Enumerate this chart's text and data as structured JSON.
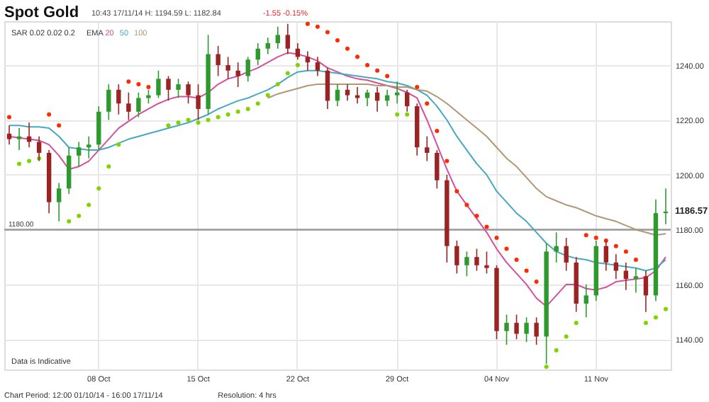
{
  "chart_data": {
    "type": "candlestick",
    "title": "Spot Gold",
    "subtitle": "10:43 17/11/14  H: 1194.59  L: 1182.84",
    "legend_title": "EMA",
    "legend": "top left",
    "grid": true,
    "categories": [
      null,
      null,
      null,
      null,
      null,
      null,
      null,
      null,
      null,
      "08 Oct",
      null,
      null,
      null,
      null,
      null,
      null,
      null,
      null,
      null,
      "15 Oct",
      null,
      null,
      null,
      null,
      null,
      null,
      null,
      null,
      null,
      "22 Oct",
      null,
      null,
      null,
      null,
      null,
      null,
      null,
      null,
      null,
      "29 Oct",
      null,
      null,
      null,
      null,
      null,
      null,
      null,
      null,
      null,
      "04 Nov",
      null,
      null,
      null,
      null,
      null,
      null,
      null,
      null,
      null,
      "11 Nov",
      null,
      null,
      null,
      null,
      null,
      null,
      null
    ],
    "ylim": [
      1129,
      1256
    ],
    "yticks": [
      {
        "value": 1140,
        "label": "1140.00"
      },
      {
        "value": 1160,
        "label": "1160.00"
      },
      {
        "value": 1180,
        "label": "1180.00"
      },
      {
        "value": 1200,
        "label": "1200.00"
      },
      {
        "value": 1220,
        "label": "1220.00"
      },
      {
        "value": 1240,
        "label": "1240.00"
      }
    ],
    "ohlc": [
      [
        1215,
        1218,
        1211,
        1213
      ],
      [
        1213,
        1217,
        1209,
        1214
      ],
      [
        1214,
        1219,
        1210,
        1212
      ],
      [
        1212,
        1214,
        1205,
        1208
      ],
      [
        1208,
        1209,
        1186,
        1190
      ],
      [
        1190,
        1197,
        1183,
        1195
      ],
      [
        1195,
        1210,
        1193,
        1207
      ],
      [
        1207,
        1212,
        1203,
        1210
      ],
      [
        1210,
        1214,
        1206,
        1211
      ],
      [
        1211,
        1225,
        1209,
        1223
      ],
      [
        1223,
        1233,
        1220,
        1231
      ],
      [
        1231,
        1233,
        1222,
        1226
      ],
      [
        1226,
        1230,
        1220,
        1223
      ],
      [
        1223,
        1230,
        1221,
        1228
      ],
      [
        1228,
        1231,
        1226,
        1229
      ],
      [
        1229,
        1238,
        1228,
        1235
      ],
      [
        1235,
        1236,
        1227,
        1231
      ],
      [
        1231,
        1235,
        1228,
        1233
      ],
      [
        1233,
        1234,
        1226,
        1229
      ],
      [
        1229,
        1233,
        1220,
        1224
      ],
      [
        1224,
        1251,
        1222,
        1244
      ],
      [
        1244,
        1247,
        1236,
        1240
      ],
      [
        1240,
        1243,
        1235,
        1238
      ],
      [
        1238,
        1241,
        1232,
        1236
      ],
      [
        1236,
        1243,
        1234,
        1242
      ],
      [
        1242,
        1248,
        1240,
        1246
      ],
      [
        1246,
        1250,
        1244,
        1248
      ],
      [
        1248,
        1254,
        1246,
        1251
      ],
      [
        1251,
        1255,
        1244,
        1246
      ],
      [
        1246,
        1248,
        1242,
        1243
      ],
      [
        1243,
        1245,
        1238,
        1241
      ],
      [
        1241,
        1243,
        1236,
        1238
      ],
      [
        1238,
        1239,
        1224,
        1227
      ],
      [
        1227,
        1233,
        1225,
        1231
      ],
      [
        1231,
        1233,
        1227,
        1229
      ],
      [
        1229,
        1232,
        1226,
        1228
      ],
      [
        1228,
        1231,
        1225,
        1230
      ],
      [
        1230,
        1232,
        1223,
        1227
      ],
      [
        1227,
        1231,
        1225,
        1229
      ],
      [
        1229,
        1234,
        1226,
        1230
      ],
      [
        1230,
        1231,
        1223,
        1225
      ],
      [
        1225,
        1226,
        1207,
        1210
      ],
      [
        1210,
        1214,
        1205,
        1208
      ],
      [
        1208,
        1209,
        1195,
        1198
      ],
      [
        1198,
        1200,
        1168,
        1174
      ],
      [
        1174,
        1176,
        1164,
        1167
      ],
      [
        1167,
        1172,
        1163,
        1170
      ],
      [
        1170,
        1173,
        1165,
        1167
      ],
      [
        1167,
        1172,
        1164,
        1166
      ],
      [
        1166,
        1167,
        1140,
        1143
      ],
      [
        1143,
        1149,
        1138,
        1146
      ],
      [
        1146,
        1149,
        1140,
        1142
      ],
      [
        1142,
        1148,
        1139,
        1146
      ],
      [
        1146,
        1148,
        1138,
        1141
      ],
      [
        1141,
        1175,
        1131,
        1172
      ],
      [
        1172,
        1179,
        1168,
        1174
      ],
      [
        1174,
        1177,
        1165,
        1168
      ],
      [
        1168,
        1170,
        1150,
        1153
      ],
      [
        1153,
        1160,
        1148,
        1156
      ],
      [
        1156,
        1176,
        1154,
        1174
      ],
      [
        1174,
        1176,
        1165,
        1168
      ],
      [
        1168,
        1171,
        1162,
        1165
      ],
      [
        1165,
        1168,
        1158,
        1162
      ],
      [
        1162,
        1166,
        1157,
        1163
      ],
      [
        1163,
        1165,
        1150,
        1156
      ],
      [
        1156,
        1191,
        1154,
        1186
      ],
      [
        1186,
        1195,
        1182,
        1186.57
      ]
    ],
    "colors": [
      "#9b2323",
      "#2e9a2e",
      "#9b2323",
      "#9b2323",
      "#9b2323",
      "#2e9a2e",
      "#2e9a2e",
      "#2e9a2e",
      "#2e9a2e",
      "#2e9a2e",
      "#2e9a2e",
      "#9b2323",
      "#9b2323",
      "#2e9a2e",
      "#2e9a2e",
      "#2e9a2e",
      "#9b2323",
      "#2e9a2e",
      "#9b2323",
      "#9b2323",
      "#2e9a2e",
      "#9b2323",
      "#9b2323",
      "#9b2323",
      "#2e9a2e",
      "#2e9a2e",
      "#2e9a2e",
      "#2e9a2e",
      "#9b2323",
      "#9b2323",
      "#9b2323",
      "#9b2323",
      "#9b2323",
      "#2e9a2e",
      "#9b2323",
      "#9b2323",
      "#2e9a2e",
      "#9b2323",
      "#2e9a2e",
      "#2e9a2e",
      "#9b2323",
      "#9b2323",
      "#9b2323",
      "#9b2323",
      "#9b2323",
      "#9b2323",
      "#2e9a2e",
      "#9b2323",
      "#9b2323",
      "#9b2323",
      "#2e9a2e",
      "#9b2323",
      "#2e9a2e",
      "#9b2323",
      "#2e9a2e",
      "#2e9a2e",
      "#9b2323",
      "#9b2323",
      "#2e9a2e",
      "#2e9a2e",
      "#9b2323",
      "#9b2323",
      "#9b2323",
      "#2e9a2e",
      "#9b2323",
      "#2e9a2e",
      "#2e9a2e"
    ],
    "series": [
      {
        "type": "line",
        "name": "20",
        "color": "#d64f9f",
        "values": [
          1214,
          1213.5,
          1213,
          1212.5,
          1211,
          1207,
          1202,
          1203,
          1205,
          1209,
          1213,
          1217,
          1219.5,
          1222,
          1224,
          1226,
          1227.5,
          1228.5,
          1228.5,
          1228,
          1230,
          1233,
          1235,
          1236,
          1237.5,
          1239,
          1241,
          1243,
          1244.5,
          1244,
          1243,
          1241.5,
          1239,
          1237.5,
          1236,
          1235,
          1234.5,
          1233.5,
          1232.5,
          1231.5,
          1230,
          1228,
          1220,
          1211,
          1202,
          1194,
          1189,
          1184,
          1179,
          1173,
          1168,
          1164,
          1160,
          1155,
          1152,
          1156,
          1160,
          1160,
          1158.5,
          1158,
          1159,
          1161,
          1161.5,
          1162,
          1162.5,
          1165,
          1170
        ]
      },
      {
        "type": "line",
        "name": "50",
        "color": "#45a9c2",
        "values": [
          1218,
          1218,
          1217.5,
          1217.5,
          1217,
          1214,
          1210,
          1209.5,
          1209,
          1209,
          1210,
          1211.5,
          1213,
          1214,
          1215,
          1216,
          1217,
          1218,
          1219,
          1220.5,
          1222,
          1224,
          1225.5,
          1227,
          1228,
          1229.5,
          1231,
          1233,
          1235.5,
          1237.5,
          1238,
          1238,
          1237.5,
          1237,
          1236.5,
          1236,
          1235.5,
          1235,
          1234,
          1233.5,
          1232.5,
          1231,
          1229,
          1225,
          1220,
          1214,
          1209,
          1204,
          1200,
          1194,
          1190,
          1186,
          1183,
          1179,
          1175,
          1172,
          1170.5,
          1169.5,
          1169,
          1168,
          1167.5,
          1167,
          1166.5,
          1166,
          1165,
          1166,
          1169
        ]
      },
      {
        "type": "line",
        "name": "100",
        "color": "#b39774",
        "values": [
          null,
          null,
          null,
          null,
          null,
          null,
          null,
          null,
          null,
          null,
          null,
          null,
          null,
          null,
          null,
          null,
          null,
          null,
          null,
          null,
          null,
          null,
          null,
          null,
          null,
          null,
          1228,
          1229.5,
          1230.5,
          1231.5,
          1232.5,
          1233,
          1233,
          1233,
          1233,
          1233,
          1233,
          1232.5,
          1232.5,
          1232,
          1232,
          1231,
          1230.5,
          1228.5,
          1226,
          1223,
          1220,
          1217,
          1214,
          1210,
          1206,
          1203,
          1199,
          1195,
          1192,
          1190.5,
          1189,
          1188,
          1186.5,
          1185,
          1184,
          1183,
          1181.5,
          1180,
          1179,
          1178,
          1178.5
        ]
      },
      {
        "type": "scatter",
        "marker": "circle",
        "color": "#ff2a00",
        "values": [
          1221,
          null,
          null,
          null,
          1222,
          1218,
          null,
          null,
          null,
          null,
          null,
          null,
          1234,
          1233,
          1232,
          null,
          null,
          null,
          null,
          null,
          null,
          null,
          null,
          null,
          null,
          null,
          null,
          null,
          null,
          null,
          1255,
          1254,
          1252,
          1249,
          1246,
          1243,
          1240,
          1238,
          1236,
          null,
          null,
          1232,
          1226,
          1216,
          1205,
          1194,
          1189,
          1185,
          1181,
          1177,
          1173,
          1169,
          1165,
          1161,
          null,
          null,
          null,
          null,
          1178,
          1177,
          1176,
          1174,
          1172,
          1169,
          null,
          null,
          null
        ]
      },
      {
        "type": "scatter",
        "marker": "circle",
        "color": "#7fd400",
        "values": [
          null,
          1204,
          1205,
          1206,
          null,
          null,
          1183,
          1185,
          1189,
          1195,
          1203,
          1211,
          null,
          null,
          null,
          null,
          1218,
          1219,
          1220,
          1219,
          1220,
          1221,
          1222,
          1223,
          1224,
          1226,
          1229,
          1233,
          1237,
          1240,
          null,
          null,
          null,
          null,
          null,
          null,
          null,
          null,
          null,
          1222,
          1222,
          null,
          null,
          null,
          null,
          null,
          null,
          null,
          null,
          null,
          null,
          null,
          null,
          null,
          1130,
          1136,
          1141,
          1146,
          null,
          null,
          null,
          null,
          null,
          null,
          1146,
          1148,
          1151
        ]
      }
    ],
    "ref_lines": [
      {
        "axis": "y",
        "value": 1180,
        "label": "1180.00",
        "color": "#999999"
      }
    ],
    "annotations": [
      "-1.55 -0.15%",
      "SAR 0.02 0.02 0.2",
      "Data is Indicative",
      "Chart Period: 12:00 01/10/14 - 16:00 17/11/14",
      "Resolution: 4 hrs",
      "1186.57"
    ]
  }
}
